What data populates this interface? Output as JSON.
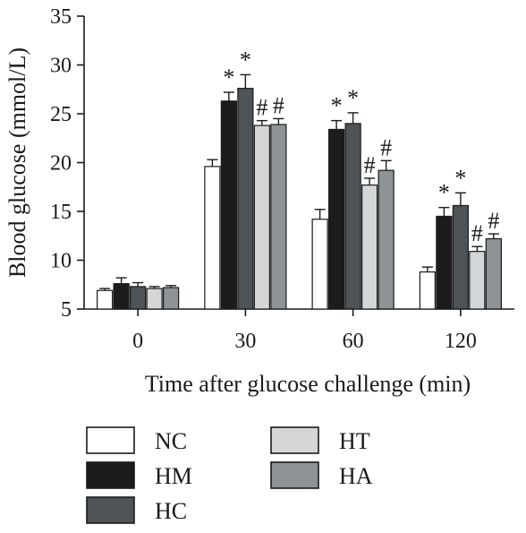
{
  "chart_data": {
    "type": "bar",
    "ylabel": "Blood glucose (mmol/L)",
    "xlabel": "Time after glucose challenge (min)",
    "categories": [
      "0",
      "30",
      "60",
      "120"
    ],
    "ylim": [
      5,
      35
    ],
    "yticks": [
      "5",
      "10",
      "15",
      "20",
      "25",
      "30",
      "35"
    ],
    "grid": false,
    "legend_position": "bottom",
    "series": [
      {
        "name": "NC",
        "color": "#ffffff",
        "values": [
          6.9,
          19.6,
          14.2,
          8.8
        ],
        "errors": [
          0.2,
          0.7,
          1.0,
          0.5
        ],
        "markers": [
          "",
          "",
          "",
          ""
        ]
      },
      {
        "name": "HM",
        "color": "#1c1c1c",
        "values": [
          7.6,
          26.3,
          23.4,
          14.5
        ],
        "errors": [
          0.6,
          0.9,
          0.9,
          0.9
        ],
        "markers": [
          "",
          "*",
          "*",
          "*"
        ]
      },
      {
        "name": "HC",
        "color": "#4d5356",
        "values": [
          7.3,
          27.6,
          24.0,
          15.6
        ],
        "errors": [
          0.4,
          1.4,
          1.1,
          1.3
        ],
        "markers": [
          "",
          "*",
          "*",
          "*"
        ]
      },
      {
        "name": "HT",
        "color": "#d4d6d7",
        "values": [
          7.1,
          23.8,
          17.7,
          10.9
        ],
        "errors": [
          0.2,
          0.5,
          0.7,
          0.5
        ],
        "markers": [
          "",
          "#",
          "#",
          "#"
        ]
      },
      {
        "name": "HA",
        "color": "#8e9395",
        "values": [
          7.2,
          23.9,
          19.2,
          12.2
        ],
        "errors": [
          0.2,
          0.6,
          1.0,
          0.5
        ],
        "markers": [
          "",
          "#",
          "#",
          "#"
        ]
      }
    ]
  }
}
